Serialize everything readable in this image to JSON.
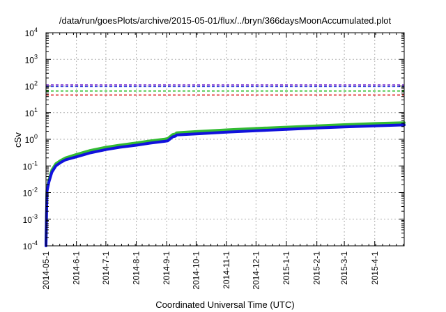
{
  "chart_data": {
    "type": "line",
    "title": "/data/run/goesPlots/archive/2015-05-01/flux/../bryn/366daysMoonAccumulated.plot",
    "xlabel": "Coordinated Universal Time (UTC)",
    "ylabel": "cSv",
    "yscale": "log",
    "ylim": [
      0.0001,
      10000
    ],
    "xlim": [
      "2014-05-01",
      "2015-05-01"
    ],
    "grid": true,
    "legend": "none",
    "y_ticks": [
      {
        "base": "10",
        "exp": "-4",
        "value": 0.0001
      },
      {
        "base": "10",
        "exp": "-3",
        "value": 0.001
      },
      {
        "base": "10",
        "exp": "-2",
        "value": 0.01
      },
      {
        "base": "10",
        "exp": "-1",
        "value": 0.1
      },
      {
        "base": "10",
        "exp": "0",
        "value": 1
      },
      {
        "base": "10",
        "exp": "1",
        "value": 10
      },
      {
        "base": "10",
        "exp": "2",
        "value": 100
      },
      {
        "base": "10",
        "exp": "3",
        "value": 1000
      },
      {
        "base": "10",
        "exp": "4",
        "value": 10000
      }
    ],
    "x_ticks": [
      {
        "label": "2014-05-1",
        "date": "2014-05-01"
      },
      {
        "label": "2014-6-1",
        "date": "2014-06-01"
      },
      {
        "label": "2014-7-1",
        "date": "2014-07-01"
      },
      {
        "label": "2014-8-1",
        "date": "2014-08-01"
      },
      {
        "label": "2014-9-1",
        "date": "2014-09-01"
      },
      {
        "label": "2014-10-1",
        "date": "2014-10-01"
      },
      {
        "label": "2014-11-1",
        "date": "2014-11-01"
      },
      {
        "label": "2014-12-1",
        "date": "2014-12-01"
      },
      {
        "label": "2015-1-1",
        "date": "2015-01-01"
      },
      {
        "label": "2015-2-1",
        "date": "2015-02-01"
      },
      {
        "label": "2015-3-1",
        "date": "2015-03-01"
      },
      {
        "label": "2015-4-1",
        "date": "2015-04-01"
      }
    ],
    "reference_lines": [
      {
        "value": 110,
        "color": "#7b2fd0",
        "style": "dashed"
      },
      {
        "value": 95,
        "color": "#2233dd",
        "style": "dashed"
      },
      {
        "value": 65,
        "color": "#22bb22",
        "style": "dashed"
      },
      {
        "value": 46,
        "color": "#dd2222",
        "style": "dashed"
      }
    ],
    "series": [
      {
        "color": "#33bb33",
        "x": [
          "2014-05-01",
          "2014-05-02",
          "2014-05-04",
          "2014-05-07",
          "2014-05-11",
          "2014-05-16",
          "2014-05-21",
          "2014-06-01",
          "2014-06-15",
          "2014-07-01",
          "2014-07-15",
          "2014-08-01",
          "2014-08-15",
          "2014-08-30",
          "2014-09-02",
          "2014-09-06",
          "2014-09-07",
          "2014-09-10",
          "2014-09-11",
          "2014-10-01",
          "2014-11-01",
          "2014-12-01",
          "2015-01-01",
          "2015-02-01",
          "2015-03-01",
          "2015-04-01",
          "2015-05-01"
        ],
        "y": [
          0.00012,
          0.013,
          0.03,
          0.07,
          0.12,
          0.16,
          0.2,
          0.27,
          0.38,
          0.5,
          0.6,
          0.73,
          0.87,
          1.02,
          1.06,
          1.4,
          1.5,
          1.6,
          1.75,
          1.95,
          2.25,
          2.55,
          2.85,
          3.2,
          3.55,
          3.9,
          4.2
        ]
      },
      {
        "color": "#1111dd",
        "x": [
          "2014-05-01",
          "2014-05-02",
          "2014-05-04",
          "2014-05-07",
          "2014-05-11",
          "2014-05-16",
          "2014-05-21",
          "2014-06-01",
          "2014-06-15",
          "2014-07-01",
          "2014-07-15",
          "2014-08-01",
          "2014-08-15",
          "2014-08-30",
          "2014-09-02",
          "2014-09-06",
          "2014-09-07",
          "2014-09-10",
          "2014-09-11",
          "2014-10-01",
          "2014-11-01",
          "2014-12-01",
          "2015-01-01",
          "2015-02-01",
          "2015-03-01",
          "2015-04-01",
          "2015-05-01"
        ],
        "y": [
          0.0001,
          0.011,
          0.025,
          0.058,
          0.1,
          0.135,
          0.17,
          0.22,
          0.31,
          0.41,
          0.5,
          0.6,
          0.72,
          0.84,
          0.87,
          1.15,
          1.23,
          1.32,
          1.45,
          1.6,
          1.85,
          2.1,
          2.35,
          2.65,
          2.9,
          3.2,
          3.45
        ]
      }
    ]
  }
}
